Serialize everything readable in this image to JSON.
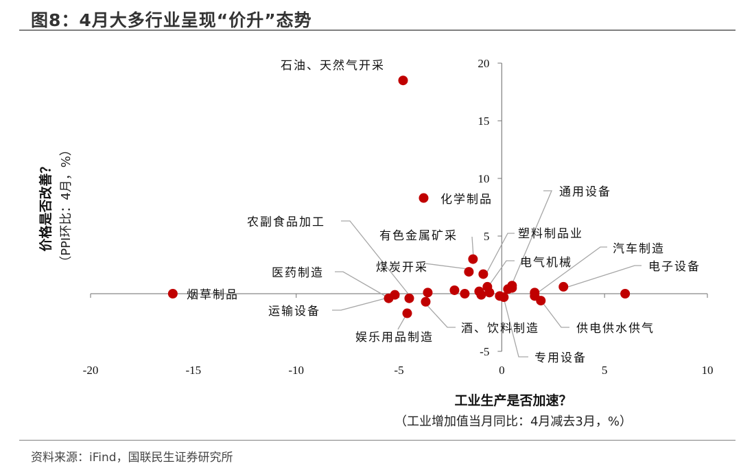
{
  "title": "图8：4月大多行业呈现“价升”态势",
  "source": "资料来源：iFind，国联民生证券研究所",
  "chart_data": {
    "type": "scatter",
    "xlabel": "工业生产是否加速？",
    "xlabel_sub": "（工业增加值当月同比：4月减去3月，%）",
    "ylabel": "价格是否改善？",
    "ylabel_sub": "（PPI环比：4月，%）",
    "xlim": [
      -20,
      10
    ],
    "ylim": [
      -5,
      20
    ],
    "xticks": [
      "-20",
      "-15",
      "-10",
      "-5",
      "0",
      "5",
      "10"
    ],
    "yticks": [
      "20",
      "15",
      "10",
      "5",
      "-5"
    ],
    "grid": false,
    "marker_color": "#c00000",
    "points": [
      {
        "name": "石油、天然气开采",
        "x": -4.8,
        "y": 18.5
      },
      {
        "name": "化学制品",
        "x": -3.8,
        "y": 8.3
      },
      {
        "name": "烟草制品",
        "x": -16.0,
        "y": 0.0
      },
      {
        "name": "通用设备",
        "x": 0.5,
        "y": 0.5
      },
      {
        "name": "农副食品加工",
        "x": -4.5,
        "y": -0.4
      },
      {
        "name": "有色金属矿采",
        "x": -1.4,
        "y": 3.0
      },
      {
        "name": "塑料制品业",
        "x": -0.9,
        "y": 1.7
      },
      {
        "name": "煤炭开采",
        "x": -1.6,
        "y": 1.9
      },
      {
        "name": "电气机械",
        "x": -0.7,
        "y": 0.6
      },
      {
        "name": "汽车制造",
        "x": 1.6,
        "y": 0.1
      },
      {
        "name": "电子设备",
        "x": 3.0,
        "y": 0.6
      },
      {
        "name": "医药制造",
        "x": -5.5,
        "y": -0.4
      },
      {
        "name": "运输设备",
        "x": -5.2,
        "y": -0.1
      },
      {
        "name": "娱乐用品制造",
        "x": -4.6,
        "y": -1.7
      },
      {
        "name": "酒、饮料制造",
        "x": -3.7,
        "y": -0.7
      },
      {
        "name": "专用设备",
        "x": -0.1,
        "y": -0.2
      },
      {
        "name": "供电供水供气",
        "x": 1.9,
        "y": -0.6
      },
      {
        "name": "",
        "x": 6.0,
        "y": 0.0
      },
      {
        "name": "",
        "x": -3.6,
        "y": 0.1
      },
      {
        "name": "",
        "x": -2.3,
        "y": 0.3
      },
      {
        "name": "",
        "x": -1.8,
        "y": 0.0
      },
      {
        "name": "",
        "x": -1.1,
        "y": 0.2
      },
      {
        "name": "",
        "x": -1.0,
        "y": -0.1
      },
      {
        "name": "",
        "x": -0.6,
        "y": 0.1
      },
      {
        "name": "",
        "x": 0.1,
        "y": -0.3
      },
      {
        "name": "",
        "x": 0.3,
        "y": 0.4
      },
      {
        "name": "",
        "x": 0.5,
        "y": 0.7
      },
      {
        "name": "",
        "x": 1.6,
        "y": -0.2
      }
    ]
  }
}
